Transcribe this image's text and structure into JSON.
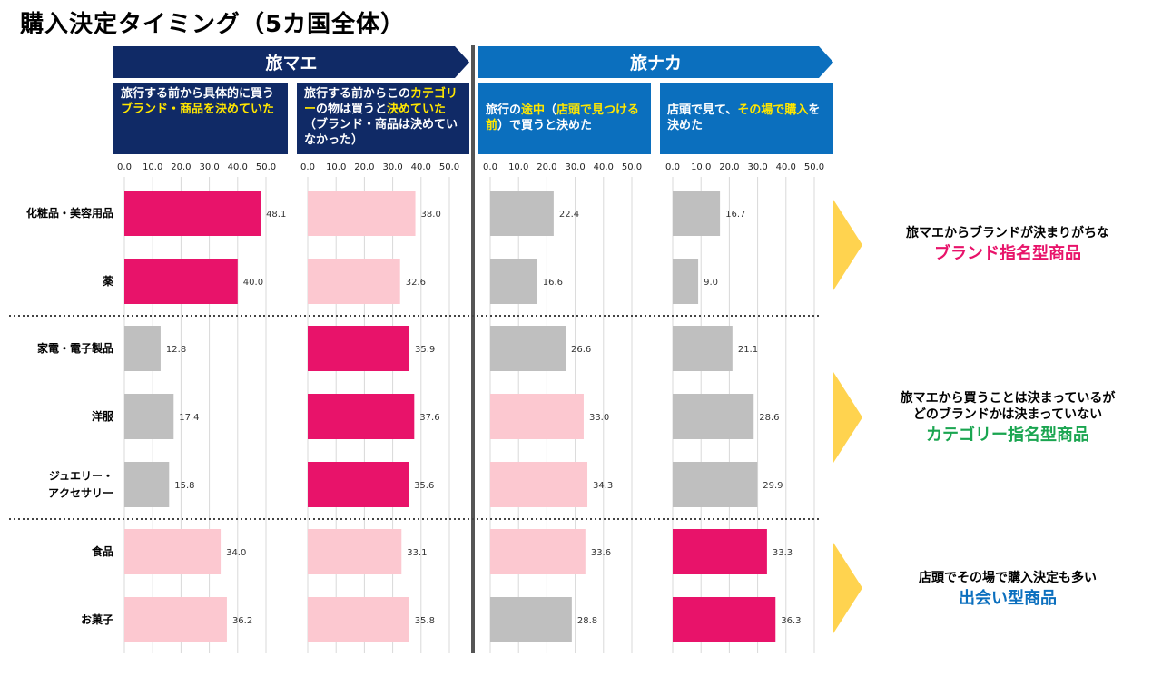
{
  "title": "購入決定タイミング（5カ国全体）",
  "phases": {
    "before": "旅マエ",
    "during": "旅ナカ"
  },
  "column_headers": [
    {
      "parts": [
        {
          "text": "旅行する前から具体的に買う"
        },
        {
          "text": "ブランド・商品を決めていた",
          "highlight": true
        }
      ]
    },
    {
      "parts": [
        {
          "text": "旅行する前からこの"
        },
        {
          "text": "カテゴリー",
          "highlight": true
        },
        {
          "text": "の物は買うと"
        },
        {
          "text": "決めていた",
          "highlight": true
        },
        {
          "text": "（ブランド・商品は決めていなかった）"
        }
      ]
    },
    {
      "parts": [
        {
          "text": "旅行の"
        },
        {
          "text": "途中",
          "highlight": true
        },
        {
          "text": "（"
        },
        {
          "text": "店頭で見つける前",
          "highlight": true
        },
        {
          "text": "）で買うと決めた"
        }
      ]
    },
    {
      "parts": [
        {
          "text": "店頭で見て、"
        },
        {
          "text": "その場で購入",
          "highlight": true
        },
        {
          "text": "を決めた"
        }
      ]
    }
  ],
  "notes": [
    {
      "lines": [
        "旅マエからブランドが決まりがちな"
      ],
      "highlight": "ブランド指名型商品",
      "color": "#e8136a"
    },
    {
      "lines": [
        "旅マエから買うことは決まっているが",
        "どのブランドかは決まっていない"
      ],
      "highlight": "カテゴリー指名型商品",
      "color": "#1aa550"
    },
    {
      "lines": [
        "店頭でその場で購入決定も多い"
      ],
      "highlight": "出会い型商品",
      "color": "#0b6fbe"
    }
  ],
  "chart_data": {
    "type": "bar",
    "orientation": "horizontal",
    "title": "購入決定タイミング（5カ国全体）",
    "categories": [
      "化粧品・美容用品",
      "薬",
      "家電・電子製品",
      "洋服",
      "ジュエリー・アクセサリー",
      "食品",
      "お菓子"
    ],
    "category_labels": [
      [
        "化粧品・美容用品"
      ],
      [
        "薬"
      ],
      [
        "家電・電子製品"
      ],
      [
        "洋服"
      ],
      [
        "ジュエリー・",
        "アクセサリー"
      ],
      [
        "食品"
      ],
      [
        "お菓子"
      ]
    ],
    "xlim": [
      0,
      50
    ],
    "ticks": [
      "0.0",
      "10.0",
      "20.0",
      "30.0",
      "40.0",
      "50.0"
    ],
    "grid": true,
    "series": [
      {
        "values": [
          48.1,
          40.0,
          12.8,
          17.4,
          15.8,
          34.0,
          36.2
        ],
        "labels": [
          "48.1",
          "40.0",
          "12.8",
          "17.4",
          "15.8",
          "34.0",
          "36.2"
        ],
        "colors": [
          "#e8136a",
          "#e8136a",
          "#bfbfbf",
          "#bfbfbf",
          "#bfbfbf",
          "#fcc8d0",
          "#fcc8d0"
        ]
      },
      {
        "values": [
          38.0,
          32.6,
          35.9,
          37.6,
          35.6,
          33.1,
          35.8
        ],
        "labels": [
          "38.0",
          "32.6",
          "35.9",
          "37.6",
          "35.6",
          "33.1",
          "35.8"
        ],
        "colors": [
          "#fcc8d0",
          "#fcc8d0",
          "#e8136a",
          "#e8136a",
          "#e8136a",
          "#fcc8d0",
          "#fcc8d0"
        ]
      },
      {
        "values": [
          22.4,
          16.6,
          26.6,
          33.0,
          34.3,
          33.6,
          28.8
        ],
        "labels": [
          "22.4",
          "16.6",
          "26.6",
          "33.0",
          "34.3",
          "33.6",
          "28.8"
        ],
        "colors": [
          "#bfbfbf",
          "#bfbfbf",
          "#bfbfbf",
          "#fcc8d0",
          "#fcc8d0",
          "#fcc8d0",
          "#bfbfbf"
        ]
      },
      {
        "values": [
          16.7,
          9.0,
          21.1,
          28.6,
          29.9,
          33.3,
          36.3
        ],
        "labels": [
          "16.7",
          "9.0",
          "21.1",
          "28.6",
          "29.9",
          "33.3",
          "36.3"
        ],
        "colors": [
          "#bfbfbf",
          "#bfbfbf",
          "#bfbfbf",
          "#bfbfbf",
          "#bfbfbf",
          "#e8136a",
          "#e8136a"
        ]
      }
    ],
    "group_breaks_after": [
      1,
      4
    ]
  }
}
